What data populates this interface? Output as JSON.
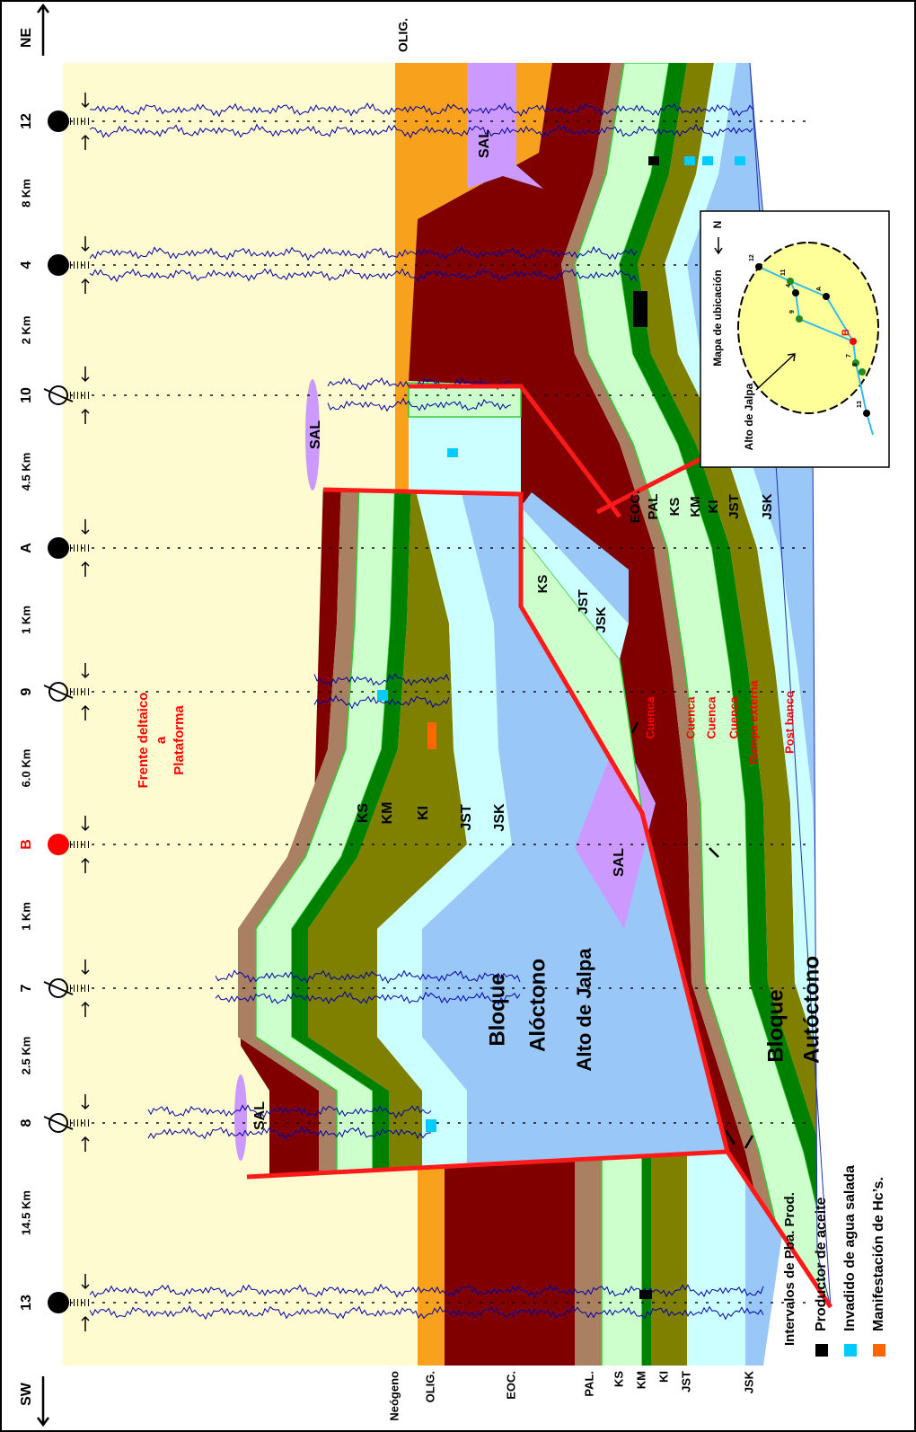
{
  "header": {
    "left": "SW",
    "right": "NE"
  },
  "wells": [
    "13",
    "8",
    "7",
    "B",
    "9",
    "A",
    "10",
    "4",
    "12"
  ],
  "distances": [
    "14.5 Km",
    "2.5 Km",
    "1 Km",
    "6.0 Km",
    "1 Km",
    "4.5 Km",
    "2 Km",
    "8 Km"
  ],
  "strat_labels": [
    "Neógeno",
    "OLIG.",
    "EOC.",
    "PAL.",
    "KS",
    "KM",
    "KI",
    "JST",
    "JSK"
  ],
  "annotations": [
    "Frente deltaico",
    "a",
    "Plataforma",
    "SAL",
    "SAL",
    "SAL",
    "SAL",
    "OLIG.",
    "KS",
    "KM",
    "KI",
    "JST",
    "JSK",
    "Bloque",
    "Alóctono",
    "Alto de Jalpa",
    "Bloque",
    "Autóctono",
    "KS",
    "JST",
    "JSK",
    "EOC.",
    "PAL",
    "KS",
    "KM",
    "KI",
    "JST",
    "JSK",
    "Cuenca",
    "Cuenca",
    "Cuenca",
    "Cuenca",
    "Rampa externa",
    "Post banco"
  ],
  "legend": {
    "title": "Intervalos de Pba. Prod.",
    "items": [
      "Productor de aceite",
      "Invadido de agua salada",
      "Manifestación de Hc’s."
    ]
  },
  "map": {
    "title": "Mapa de ubicación",
    "north": "N",
    "area": "Alto de Jalpa",
    "wells": [
      "12",
      "11",
      "4",
      "A",
      "9",
      "B",
      "7",
      "8",
      "13"
    ]
  }
}
